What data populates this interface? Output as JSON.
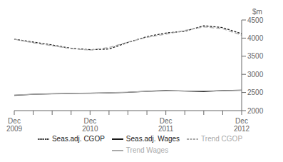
{
  "chart_data": {
    "type": "line",
    "ylabel": "$m",
    "categories": [
      "Dec\n2009",
      null,
      null,
      null,
      "Dec\n2010",
      null,
      null,
      null,
      "Dec\n2011",
      null,
      null,
      null,
      "Dec\n2012"
    ],
    "series": [
      {
        "name": "Seas.adj. Wages",
        "color": "#1a1a1a",
        "line_style": "solid",
        "values": [
          2420,
          2450,
          2465,
          2475,
          2480,
          2490,
          2505,
          2535,
          2555,
          2540,
          2525,
          2555,
          2565
        ]
      },
      {
        "name": "Trend Wages",
        "color": "#aaaaaa",
        "line_style": "solid",
        "values": [
          2430,
          2450,
          2462,
          2472,
          2482,
          2495,
          2510,
          2528,
          2542,
          2544,
          2542,
          2548,
          2560
        ]
      },
      {
        "name": "Seas.adj. CGOP",
        "color": "#1a1a1a",
        "line_style": "dashed",
        "values": [
          3970,
          3890,
          3810,
          3720,
          3680,
          3700,
          3880,
          4040,
          4140,
          4190,
          4340,
          4290,
          4120
        ]
      },
      {
        "name": "Trend CGOP",
        "color": "#aaaaaa",
        "line_style": "dashed",
        "values": [
          3970,
          3870,
          3790,
          3710,
          3670,
          3740,
          3890,
          4020,
          4110,
          4210,
          4310,
          4260,
          4080
        ]
      }
    ],
    "ylim": [
      2000,
      4500
    ],
    "yticks": [
      2000,
      2500,
      3000,
      3500,
      4000,
      4500
    ],
    "grid": false,
    "legend": "bottom"
  }
}
